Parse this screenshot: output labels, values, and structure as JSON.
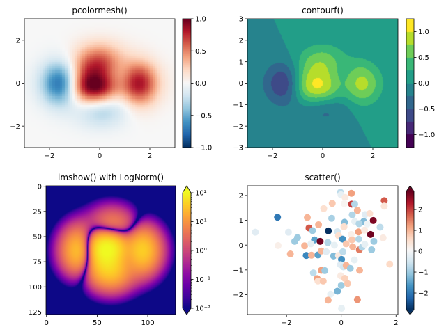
{
  "chart_data": [
    {
      "type": "heatmap",
      "title": "pcolormesh()",
      "colormap": "RdBu_r",
      "vmin": -1.0,
      "vmax": 1.0,
      "xlim": [
        -3,
        3
      ],
      "ylim": [
        -3,
        3
      ],
      "xticks": {
        "values": [
          -2,
          0,
          2
        ],
        "labels": [
          "−2",
          "0",
          "2"
        ]
      },
      "yticks": {
        "values": [
          -2,
          0,
          2
        ],
        "labels": [
          "−2",
          "0",
          "2"
        ]
      },
      "colorbar": {
        "values": [
          -1.0,
          -0.5,
          0.0,
          0.5,
          1.0
        ],
        "labels": [
          "−1.0",
          "−0.5",
          "0.0",
          "0.5",
          "1.0"
        ],
        "extend": "neither"
      }
    },
    {
      "type": "contour",
      "title": "contourf()",
      "colormap": "viridis",
      "levels": [
        -1.25,
        -1.0,
        -0.75,
        -0.5,
        -0.25,
        0.0,
        0.25,
        0.5,
        0.75,
        1.0,
        1.25
      ],
      "xlim": [
        -3,
        3
      ],
      "ylim": [
        -3,
        3
      ],
      "xticks": {
        "values": [
          -2,
          0,
          2
        ],
        "labels": [
          "−2",
          "0",
          "2"
        ]
      },
      "yticks": {
        "values": [
          -3,
          -2,
          -1,
          0,
          1,
          2,
          3
        ],
        "labels": [
          "−3",
          "−2",
          "−1",
          "0",
          "1",
          "2",
          "3"
        ]
      },
      "colorbar": {
        "values": [
          -1.0,
          -0.5,
          0.0,
          0.5,
          1.0
        ],
        "labels": [
          "−1.0",
          "−0.5",
          "0.0",
          "0.5",
          "1.0"
        ],
        "extend": "neither"
      }
    },
    {
      "type": "heatmap",
      "title": "imshow() with LogNorm()",
      "colormap": "plasma",
      "norm": "log",
      "vmin": 0.01,
      "vmax": 100,
      "image_size": [
        128,
        128
      ],
      "xlim": [
        -0.5,
        127.5
      ],
      "ylim": [
        127.5,
        -0.5
      ],
      "xticks": {
        "values": [
          0,
          50,
          100
        ],
        "labels": [
          "0",
          "50",
          "100"
        ]
      },
      "yticks": {
        "values": [
          0,
          25,
          50,
          75,
          100,
          125
        ],
        "labels": [
          "0",
          "25",
          "50",
          "75",
          "100",
          "125"
        ]
      },
      "colorbar": {
        "values": [
          0.01,
          0.1,
          1,
          10,
          100
        ],
        "labels": [
          "10⁻²",
          "10⁻¹",
          "10⁰",
          "10¹",
          "10²"
        ],
        "extend": "both"
      }
    },
    {
      "type": "scatter",
      "title": "scatter()",
      "colormap": "RdBu_r",
      "clim": [
        -2.8,
        2.87
      ],
      "xlim": [
        -3.43,
        2.07
      ],
      "ylim": [
        -2.8,
        2.39
      ],
      "xticks": {
        "values": [
          -2,
          0,
          2
        ],
        "labels": [
          "−2",
          "0",
          "2"
        ]
      },
      "yticks": {
        "values": [
          -2,
          -1,
          0,
          1,
          2
        ],
        "labels": [
          "−2",
          "−1",
          "0",
          "1",
          "2"
        ]
      },
      "colorbar": {
        "values": [
          -2,
          -1,
          0,
          1,
          2
        ],
        "labels": [
          "−2",
          "−1",
          "0",
          "1",
          "2"
        ],
        "extend": "both"
      },
      "points": {
        "x": [
          -2.33,
          -3.14,
          -2.31,
          -1.86,
          -1.93,
          -1.6,
          -1.7,
          -1.34,
          -1.24,
          -1.18,
          -1.05,
          -0.98,
          -1.11,
          -1.28,
          -1.09,
          -0.83,
          -0.77,
          -0.85,
          -0.73,
          -1.02,
          -0.73,
          -0.6,
          -0.88,
          -0.85,
          -0.66,
          -0.64,
          -0.47,
          -0.49,
          -0.55,
          -0.33,
          -0.35,
          -0.39,
          -0.48,
          -0.25,
          -0.28,
          -0.14,
          -0.1,
          -0.1,
          -0.03,
          -0.01,
          0.05,
          0.06,
          0.01,
          -0.03,
          0.08,
          -0.02,
          0.13,
          0.0,
          -0.14,
          0.23,
          0.01,
          0.18,
          0.12,
          0.1,
          0.14,
          0.11,
          0.37,
          0.38,
          0.49,
          0.4,
          0.49,
          0.36,
          0.39,
          0.18,
          0.42,
          0.33,
          0.48,
          0.59,
          0.63,
          0.64,
          0.66,
          0.67,
          0.59,
          0.76,
          0.82,
          0.85,
          0.86,
          0.65,
          0.87,
          0.95,
          1.04,
          1.17,
          1.07,
          1.19,
          1.11,
          1.42,
          1.57,
          1.57,
          1.53,
          1.77
        ],
        "y": [
          1.12,
          0.52,
          -0.02,
          -0.36,
          0.52,
          0.3,
          0.15,
          -0.03,
          1.11,
          0.69,
          0.58,
          0.21,
          0.05,
          -0.42,
          -0.41,
          0.82,
          0.15,
          -0.4,
          -0.24,
          -1.12,
          -1.02,
          -1.03,
          -1.35,
          -1.45,
          -1.45,
          1.47,
          0.57,
          0.1,
          -0.27,
          1.68,
          1.08,
          -1.98,
          -2.22,
          -0.01,
          -0.44,
          0.54,
          0.38,
          -0.42,
          2.13,
          2.03,
          0.24,
          -0.27,
          -0.58,
          -0.79,
          -0.88,
          -1.24,
          -1.34,
          -1.62,
          -1.86,
          -1.55,
          -2.55,
          -0.82,
          0.92,
          0.74,
          1.92,
          1.67,
          2.09,
          1.65,
          1.65,
          1.22,
          0.95,
          0.43,
          0.21,
          0.05,
          -0.07,
          -0.94,
          -0.6,
          1.4,
          0.53,
          0.24,
          -0.19,
          -1.02,
          -2.2,
          -0.09,
          0.95,
          0.6,
          0.03,
          0.86,
          1.23,
          0.85,
          1.27,
          0.99,
          0.43,
          0.15,
          -0.19,
          0.72,
          1.79,
          1.57,
          0.29,
          -0.77
        ],
        "c": [
          -2,
          -0.3,
          0.2,
          1,
          -0.3,
          -1,
          -1,
          1,
          1,
          1.8,
          -1,
          -1.5,
          -0.2,
          -1.8,
          1,
          1,
          2.8,
          -1.5,
          1,
          -0.7,
          1.2,
          -1,
          1.2,
          0.5,
          0.8,
          0.5,
          -2.8,
          -0.8,
          -0.3,
          0.8,
          -0.9,
          -0.2,
          1,
          -0.2,
          -1.2,
          -0.5,
          0.5,
          0.3,
          -0.7,
          -0.2,
          -1.7,
          -0.7,
          -1.7,
          -0.3,
          -0.5,
          0.3,
          0.7,
          -1,
          -1.3,
          0.8,
          -0.2,
          1,
          -1.2,
          0.5,
          0.3,
          0.1,
          1.2,
          2,
          -0.8,
          -0.8,
          -0.2,
          0.2,
          0.8,
          0.8,
          1,
          -1,
          -0.2,
          1,
          1.2,
          -0.8,
          1.5,
          1,
          1.3,
          -0.8,
          -1.2,
          0.3,
          -0.2,
          -0.8,
          -0.3,
          -0.1,
          0.5,
          2.7,
          2.8,
          -1,
          -1,
          -0.7,
          1.8,
          0.4,
          0.3,
          0.6
        ]
      }
    }
  ]
}
